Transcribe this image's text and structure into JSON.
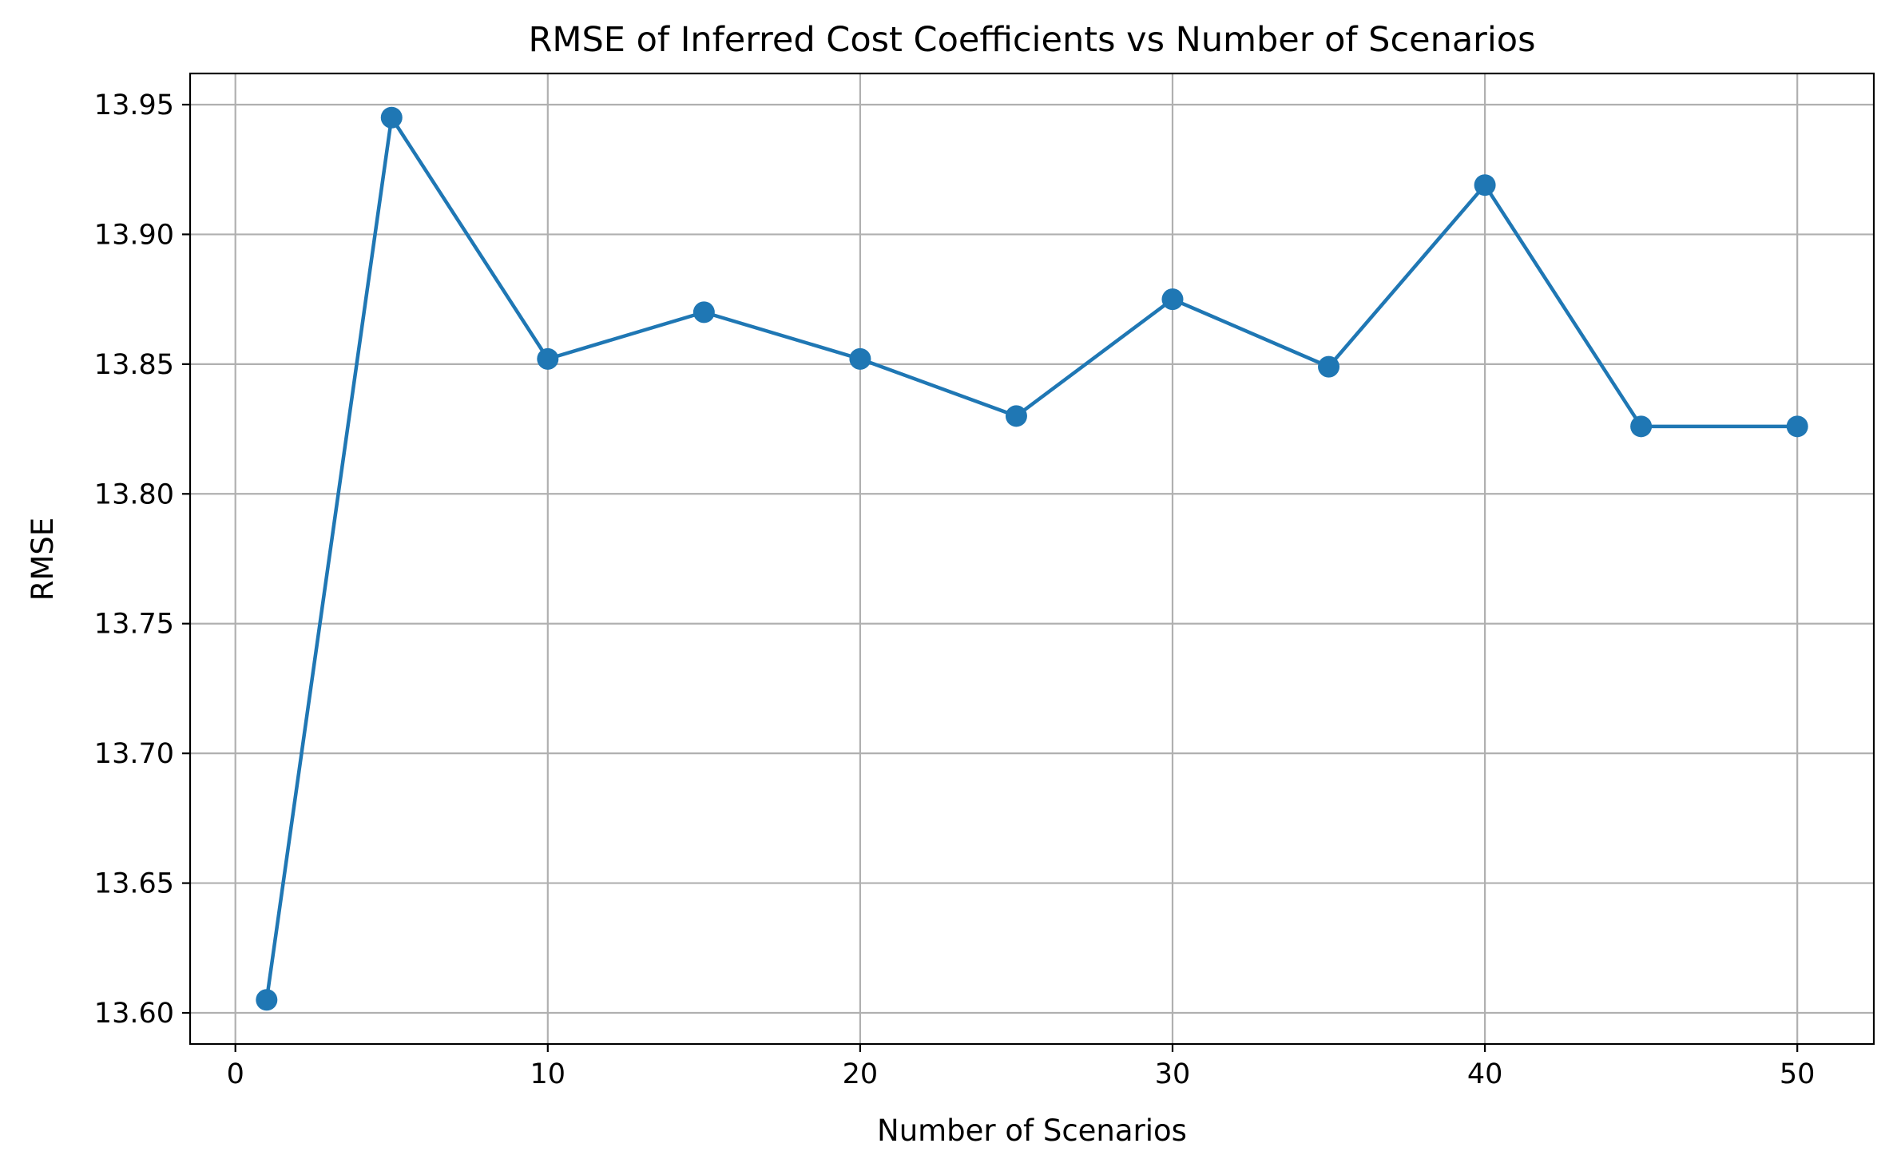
{
  "chart_data": {
    "type": "line",
    "title": "RMSE of Inferred Cost Coefficients vs Number of Scenarios",
    "xlabel": "Number of Scenarios",
    "ylabel": "RMSE",
    "xlim": [
      -1.45,
      52.45
    ],
    "ylim": [
      13.588,
      13.962
    ],
    "x_ticks": [
      0,
      10,
      20,
      30,
      40,
      50
    ],
    "y_ticks": [
      13.6,
      13.65,
      13.7,
      13.75,
      13.8,
      13.85,
      13.9,
      13.95
    ],
    "x_tick_labels": [
      "0",
      "10",
      "20",
      "30",
      "40",
      "50"
    ],
    "y_tick_labels": [
      "13.60",
      "13.65",
      "13.70",
      "13.75",
      "13.80",
      "13.85",
      "13.90",
      "13.95"
    ],
    "grid": true,
    "series": [
      {
        "color": "#1f77b4",
        "marker": "circle",
        "x": [
          1,
          5,
          10,
          15,
          20,
          25,
          30,
          35,
          40,
          45,
          50
        ],
        "y": [
          13.605,
          13.945,
          13.852,
          13.87,
          13.852,
          13.83,
          13.875,
          13.849,
          13.919,
          13.826,
          13.826
        ]
      }
    ]
  }
}
